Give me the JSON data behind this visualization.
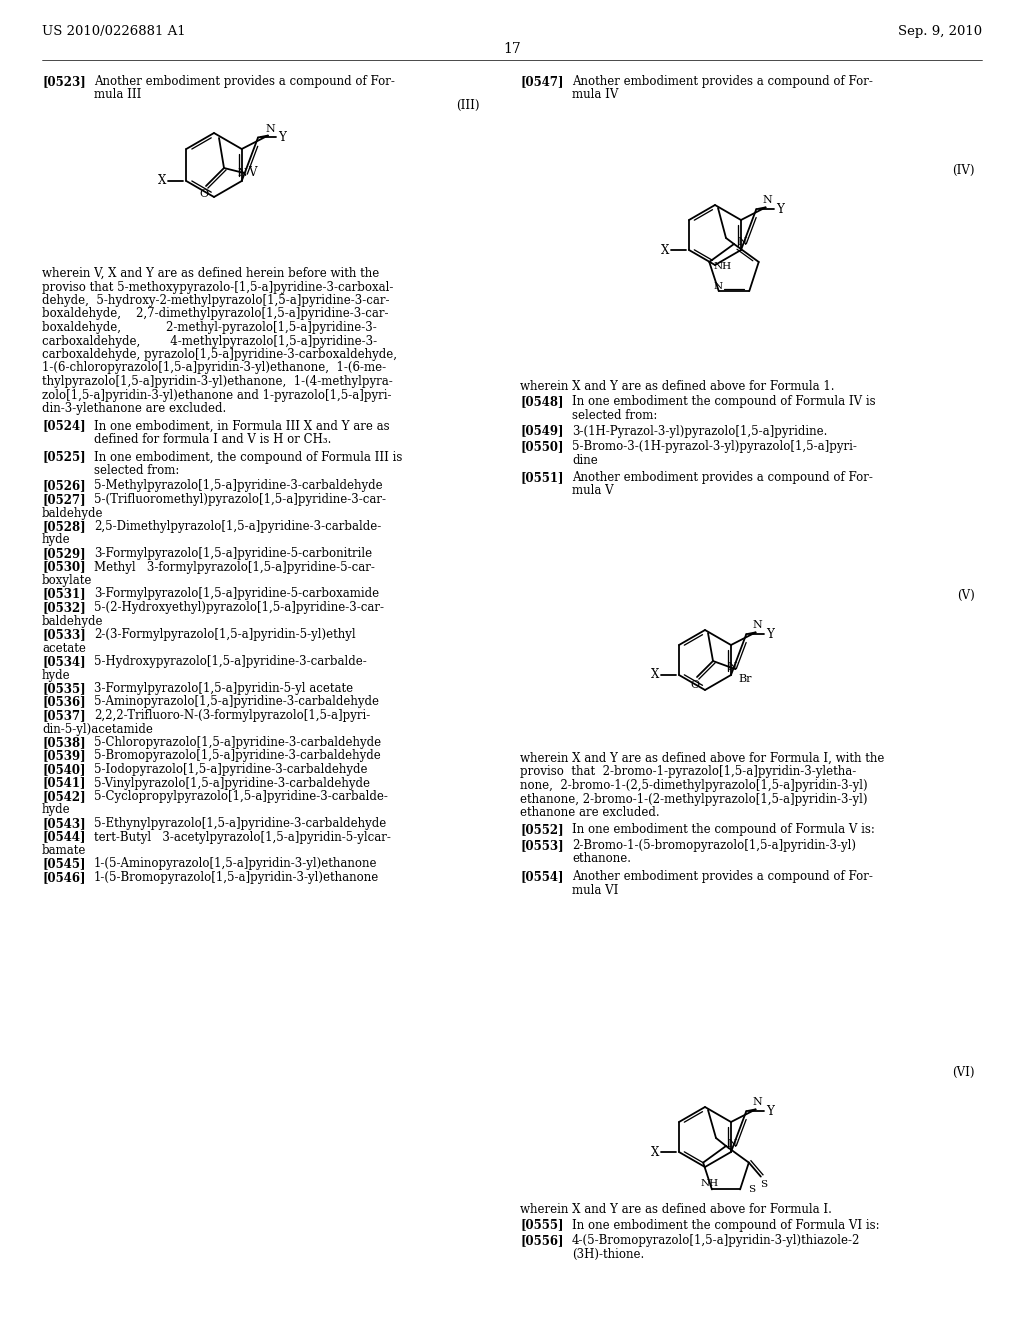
{
  "header_left": "US 2010/0226881 A1",
  "header_right": "Sep. 9, 2010",
  "page_number": "17",
  "bg": "#ffffff",
  "fg": "#000000"
}
